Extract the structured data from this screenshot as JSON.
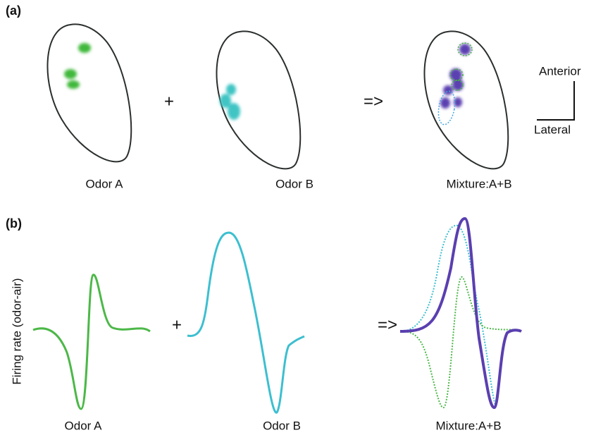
{
  "panel_a": {
    "label": "(a)",
    "operators": [
      "+",
      "=>"
    ],
    "captions": [
      "Odor A",
      "Odor B",
      "Mixture:A+B"
    ],
    "orientation": {
      "vertical": "Anterior",
      "horizontal": "Lateral"
    }
  },
  "panel_b": {
    "label": "(b)",
    "y_axis_label": "Firing rate (odor-air)",
    "operators": [
      "+",
      "=>"
    ],
    "captions": [
      "Odor A",
      "Odor B",
      "Mixture:A+B"
    ]
  }
}
